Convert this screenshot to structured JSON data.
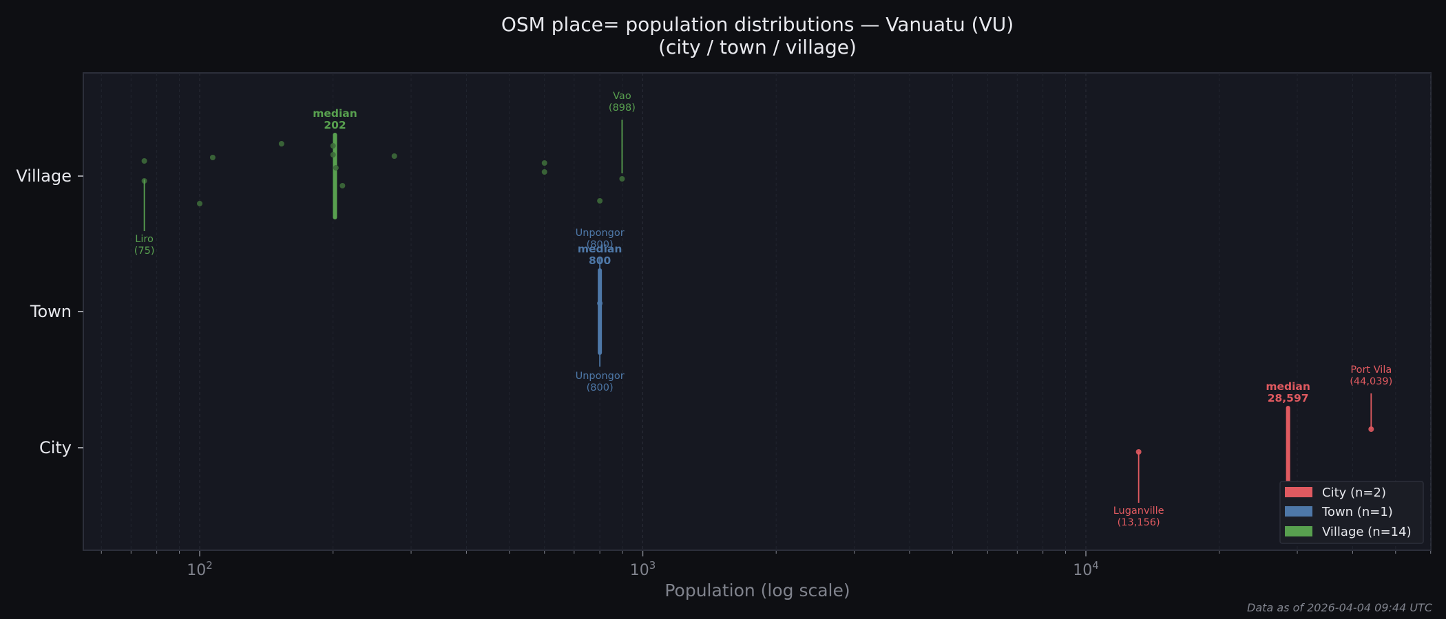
{
  "header": {
    "title_line1": "OSM place= population distributions — Vanuatu (VU)",
    "title_line2": "(city / town / village)"
  },
  "footer": {
    "timestamp": "Data as of 2026-04-04 09:44 UTC"
  },
  "colors": {
    "background": "#0e0f13",
    "plot_background": "#161821",
    "frame": "#2c2f3a",
    "city": "#e05a60",
    "town": "#4e78a8",
    "village": "#58a04f",
    "village_point": "#3d6a3a"
  },
  "chart_data": {
    "type": "scatter",
    "title": "OSM place= population distributions — Vanuatu (VU) (city / town / village)",
    "xlabel": "Population (log scale)",
    "ylabel": "",
    "xscale": "log",
    "xlim": [
      53,
      57500
    ],
    "x_tick_labels": [
      "10^2",
      "10^3",
      "10^4"
    ],
    "x_ticks": [
      100,
      1000,
      10000
    ],
    "categories": [
      "Village",
      "Town",
      "City"
    ],
    "grid": true,
    "legend_position": "lower right",
    "series": [
      {
        "name": "City",
        "n": 2,
        "color": "#e05a60",
        "values": [
          13156,
          44039
        ],
        "median": 28597,
        "median_label": "28,597",
        "labeled_points": [
          {
            "name": "Luganville",
            "value": 13156,
            "value_label": "13,156",
            "position": "below"
          },
          {
            "name": "Port Vila",
            "value": 44039,
            "value_label": "44,039",
            "position": "above"
          }
        ]
      },
      {
        "name": "Town",
        "n": 1,
        "color": "#4e78a8",
        "values": [
          800
        ],
        "median": 800,
        "median_label": "800",
        "labeled_points": [
          {
            "name": "Unpongor",
            "value": 800,
            "value_label": "800",
            "position": "below"
          },
          {
            "name": "Unpongor",
            "value": 800,
            "value_label": "800",
            "position": "above"
          }
        ]
      },
      {
        "name": "Village",
        "n": 14,
        "color": "#58a04f",
        "values": [
          75,
          75,
          100,
          107,
          153,
          200,
          200,
          203,
          210,
          275,
          600,
          600,
          800,
          898
        ],
        "median": 202,
        "median_label": "202",
        "labeled_points": [
          {
            "name": "Liro",
            "value": 75,
            "value_label": "75",
            "position": "below"
          },
          {
            "name": "Vao",
            "value": 898,
            "value_label": "898",
            "position": "above"
          }
        ]
      }
    ]
  },
  "legend": {
    "items": [
      {
        "label": "City  (n=2)",
        "color": "#e05a60"
      },
      {
        "label": "Town  (n=1)",
        "color": "#4e78a8"
      },
      {
        "label": "Village  (n=14)",
        "color": "#58a04f"
      }
    ]
  },
  "annotations": {
    "median_word": "median"
  }
}
